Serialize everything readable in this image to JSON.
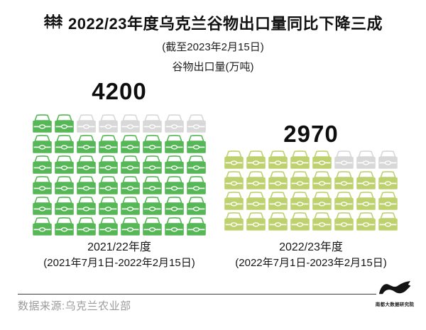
{
  "header": {
    "title": "2022/23年度乌克兰谷物出口量同比下降三成",
    "subtitle": "(截至2023年2月15日)",
    "unit_label": "谷物出口量(万吨)"
  },
  "chart_data": {
    "type": "pictogram-bar",
    "title": "2022/23年度乌克兰谷物出口量同比下降三成",
    "ylabel": "谷物出口量(万吨)",
    "icon": "grain-sack",
    "unit_per_icon": 100,
    "categories": [
      "2021/22年度",
      "2022/23年度"
    ],
    "series": [
      {
        "label": "2021/22年度",
        "period": "(2021年7月1日-2022年2月15日)",
        "value": 4200,
        "value_label": "4200",
        "icons_filled": 42,
        "icons_total": 48,
        "columns": 8,
        "rows": 6,
        "color": "#55b755"
      },
      {
        "label": "2022/23年度",
        "period": "(2022年7月1日-2023年2月15日)",
        "value": 2970,
        "value_label": "2970",
        "icons_filled": 29,
        "icons_total": 32,
        "columns": 8,
        "rows": 4,
        "color": "#bdd26e"
      }
    ],
    "empty_color": "#d8d8d8",
    "legend_position": "none",
    "grid": false
  },
  "footer": {
    "source_label": "数据来源:乌克兰农业部",
    "logo_name": "南都大数据研究院"
  },
  "colors": {
    "green_dark": "#55b755",
    "green_light": "#bdd26e",
    "empty": "#d8d8d8",
    "text_dark": "#111111",
    "text_gray": "#9b9b9b"
  }
}
